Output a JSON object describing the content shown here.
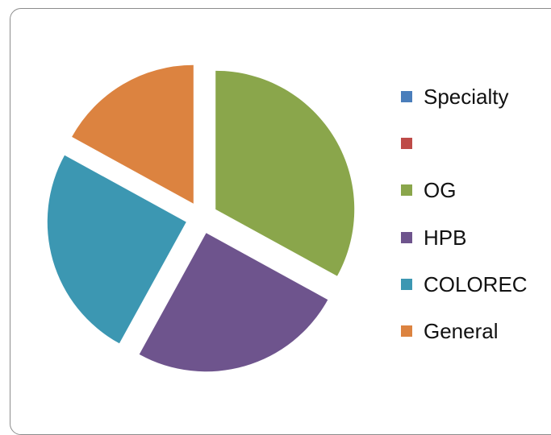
{
  "chart_data": {
    "type": "pie",
    "title": "",
    "legend_position": "right",
    "slices": [
      {
        "label": "Specialty",
        "value": 0,
        "color": "#4a7ebb"
      },
      {
        "label": "",
        "value": 0,
        "color": "#be4b48"
      },
      {
        "label": "OG",
        "value": 33,
        "color": "#8aa64b"
      },
      {
        "label": "HPB",
        "value": 25,
        "color": "#6e548d"
      },
      {
        "label": "COLOREC",
        "value": 25,
        "color": "#3c97b2"
      },
      {
        "label": "General",
        "value": 17,
        "color": "#dc8340"
      }
    ]
  }
}
